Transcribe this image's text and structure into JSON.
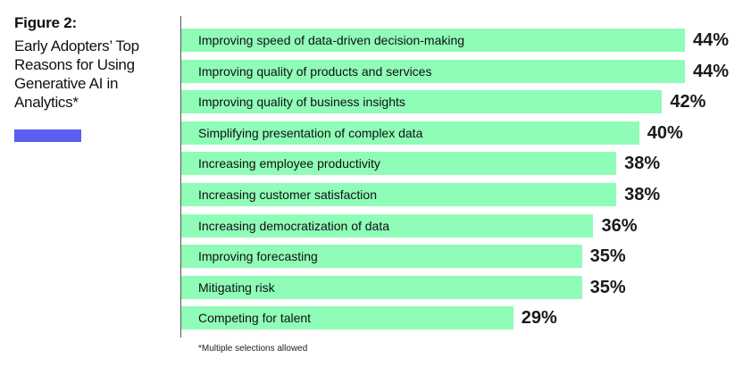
{
  "figure": {
    "label": "Figure 2:",
    "title": "Early Adopters’ Top Reasons for Using Generative AI in Analytics*",
    "footnote": "*Multiple selections allowed"
  },
  "colors": {
    "bar": "#8ffcb7",
    "accent": "#5b5ff0",
    "axis": "#555555"
  },
  "chart_data": {
    "type": "bar",
    "orientation": "horizontal",
    "title": "Early Adopters’ Top Reasons for Using Generative AI in Analytics*",
    "categories": [
      "Improving speed of data-driven decision-making",
      "Improving quality of products and services",
      "Improving quality of business insights",
      "Simplifying presentation of complex data",
      "Increasing employee productivity",
      "Increasing customer satisfaction",
      "Increasing democratization of data",
      "Improving forecasting",
      "Mitigating risk",
      "Competing for talent"
    ],
    "values": [
      44,
      44,
      42,
      40,
      38,
      38,
      36,
      35,
      35,
      29
    ],
    "value_labels": [
      "44%",
      "44%",
      "42%",
      "40%",
      "38%",
      "38%",
      "36%",
      "35%",
      "35%",
      "29%"
    ],
    "unit": "%",
    "grid": false,
    "legend": false
  }
}
